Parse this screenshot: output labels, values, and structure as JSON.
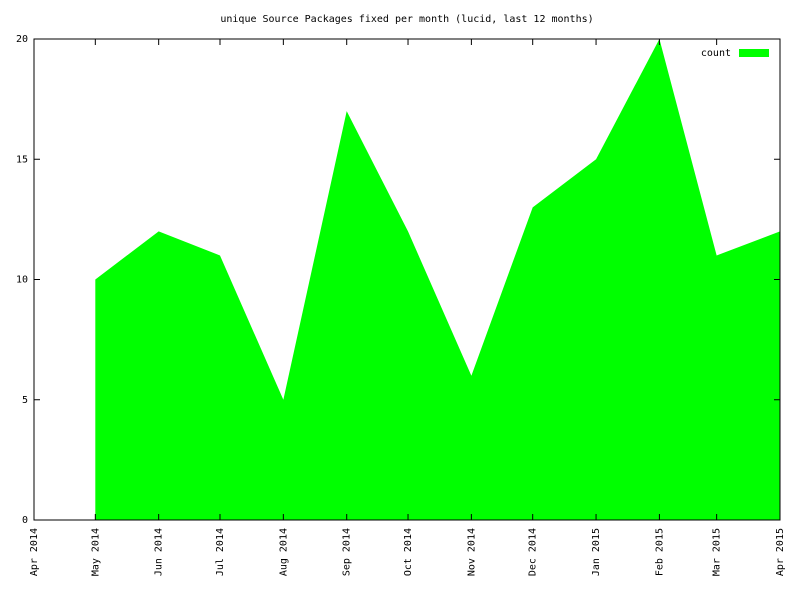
{
  "chart_data": {
    "type": "area",
    "title": "unique Source Packages fixed per month (lucid, last 12 months)",
    "x": [
      "2014-05",
      "2014-06",
      "2014-07",
      "2014-08",
      "2014-09",
      "2014-10",
      "2014-11",
      "2014-12",
      "2015-01",
      "2015-02",
      "2015-03",
      "2015-04"
    ],
    "series": [
      {
        "name": "count",
        "color": "#00ff00",
        "values": [
          10,
          12,
          11,
          5,
          17,
          12,
          6,
          13,
          15,
          20,
          11,
          12
        ]
      }
    ],
    "xlim": [
      "2014-04",
      "2015-04"
    ],
    "xticks": [
      {
        "value": "2014-04",
        "label": "Apr 2014"
      },
      {
        "value": "2014-05",
        "label": "May 2014"
      },
      {
        "value": "2014-06",
        "label": "Jun 2014"
      },
      {
        "value": "2014-07",
        "label": "Jul 2014"
      },
      {
        "value": "2014-08",
        "label": "Aug 2014"
      },
      {
        "value": "2014-09",
        "label": "Sep 2014"
      },
      {
        "value": "2014-10",
        "label": "Oct 2014"
      },
      {
        "value": "2014-11",
        "label": "Nov 2014"
      },
      {
        "value": "2014-12",
        "label": "Dec 2014"
      },
      {
        "value": "2015-01",
        "label": "Jan 2015"
      },
      {
        "value": "2015-02",
        "label": "Feb 2015"
      },
      {
        "value": "2015-03",
        "label": "Mar 2015"
      },
      {
        "value": "2015-04",
        "label": "Apr 2015"
      }
    ],
    "ylim": [
      0,
      20
    ],
    "yticks": [
      0,
      5,
      10,
      15,
      20
    ],
    "legend": "top right",
    "grid": false
  }
}
